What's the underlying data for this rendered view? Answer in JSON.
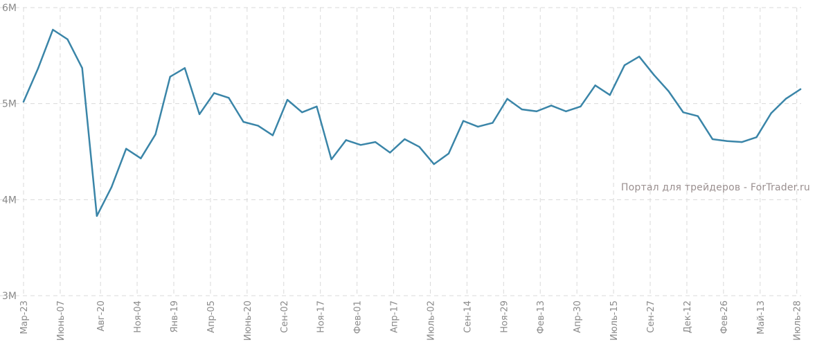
{
  "colors": {
    "series": "#3a85a8",
    "grid": "#d9d9d9",
    "tick": "#8a8a8a",
    "watermark": "#9a8f8f"
  },
  "watermark": "Портал для трейдеров - ForTrader.ru",
  "chart_data": {
    "type": "line",
    "title": "",
    "xlabel": "",
    "ylabel": "",
    "ylim": [
      3000000,
      6000000
    ],
    "grid": true,
    "legend": "none",
    "yticks": [
      {
        "value": 3000000,
        "label": "3M"
      },
      {
        "value": 4000000,
        "label": "4M"
      },
      {
        "value": 5000000,
        "label": "5M"
      },
      {
        "value": 6000000,
        "label": "6M"
      }
    ],
    "x_tick_labels": [
      {
        "index": 0,
        "label": "Мар-23"
      },
      {
        "index": 2.5,
        "label": "Июнь-07"
      },
      {
        "index": 5.25,
        "label": "Авг-20"
      },
      {
        "index": 7.75,
        "label": "Ноя-04"
      },
      {
        "index": 10.25,
        "label": "Янв-19"
      },
      {
        "index": 12.75,
        "label": "Апр-05"
      },
      {
        "index": 15.25,
        "label": "Июнь-20"
      },
      {
        "index": 17.75,
        "label": "Сен-02"
      },
      {
        "index": 20.25,
        "label": "Ноя-17"
      },
      {
        "index": 22.75,
        "label": "Фев-01"
      },
      {
        "index": 25.25,
        "label": "Апр-17"
      },
      {
        "index": 27.75,
        "label": "Июль-02"
      },
      {
        "index": 30.25,
        "label": "Сен-14"
      },
      {
        "index": 32.75,
        "label": "Ноя-29"
      },
      {
        "index": 35.25,
        "label": "Фев-13"
      },
      {
        "index": 37.75,
        "label": "Апр-30"
      },
      {
        "index": 40.25,
        "label": "Июль-15"
      },
      {
        "index": 42.75,
        "label": "Сен-27"
      },
      {
        "index": 45.25,
        "label": "Дек-12"
      },
      {
        "index": 47.75,
        "label": "Фев-26"
      },
      {
        "index": 50.25,
        "label": "Май-13"
      },
      {
        "index": 52.75,
        "label": "Июль-28"
      }
    ],
    "series": [
      {
        "values": [
          5020000,
          5370000,
          5770000,
          5670000,
          5370000,
          3830000,
          4130000,
          4530000,
          4430000,
          4680000,
          5280000,
          5370000,
          4890000,
          5110000,
          5060000,
          4810000,
          4770000,
          4670000,
          5040000,
          4910000,
          4970000,
          4420000,
          4620000,
          4570000,
          4600000,
          4490000,
          4630000,
          4550000,
          4370000,
          4480000,
          4820000,
          4760000,
          4800000,
          5050000,
          4940000,
          4920000,
          4980000,
          4920000,
          4970000,
          5190000,
          5090000,
          5400000,
          5490000,
          5300000,
          5130000,
          4910000,
          4870000,
          4630000,
          4610000,
          4600000,
          4650000,
          4900000,
          5050000,
          5150000
        ]
      }
    ]
  }
}
